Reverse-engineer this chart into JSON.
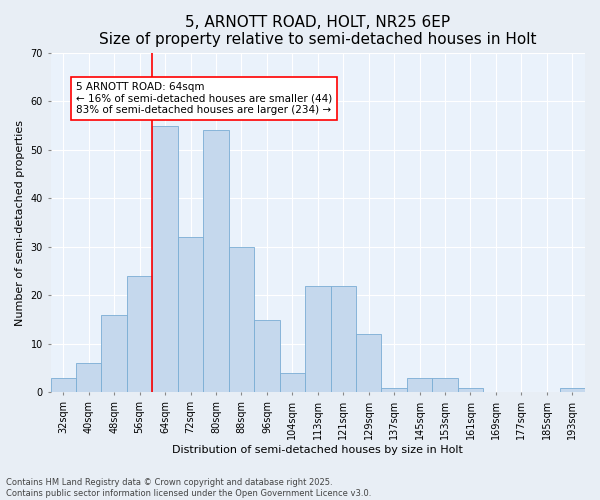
{
  "title": "5, ARNOTT ROAD, HOLT, NR25 6EP",
  "subtitle": "Size of property relative to semi-detached houses in Holt",
  "xlabel": "Distribution of semi-detached houses by size in Holt",
  "ylabel": "Number of semi-detached properties",
  "categories": [
    "32sqm",
    "40sqm",
    "48sqm",
    "56sqm",
    "64sqm",
    "72sqm",
    "80sqm",
    "88sqm",
    "96sqm",
    "104sqm",
    "113sqm",
    "121sqm",
    "129sqm",
    "137sqm",
    "145sqm",
    "153sqm",
    "161sqm",
    "169sqm",
    "177sqm",
    "185sqm",
    "193sqm"
  ],
  "values": [
    3,
    6,
    16,
    24,
    55,
    32,
    54,
    30,
    15,
    4,
    22,
    22,
    12,
    1,
    3,
    3,
    1,
    0,
    0,
    0,
    1
  ],
  "bar_color": "#c5d8ed",
  "bar_edge_color": "#7aadd4",
  "property_line_index": 4,
  "annotation_text": "5 ARNOTT ROAD: 64sqm\n← 16% of semi-detached houses are smaller (44)\n83% of semi-detached houses are larger (234) →",
  "ylim": [
    0,
    70
  ],
  "yticks": [
    0,
    10,
    20,
    30,
    40,
    50,
    60,
    70
  ],
  "background_color": "#e8eef5",
  "plot_background": "#eaf2fb",
  "footer_line1": "Contains HM Land Registry data © Crown copyright and database right 2025.",
  "footer_line2": "Contains public sector information licensed under the Open Government Licence v3.0.",
  "title_fontsize": 11,
  "axis_label_fontsize": 8,
  "tick_fontsize": 7,
  "annotation_fontsize": 7.5,
  "footer_fontsize": 6
}
